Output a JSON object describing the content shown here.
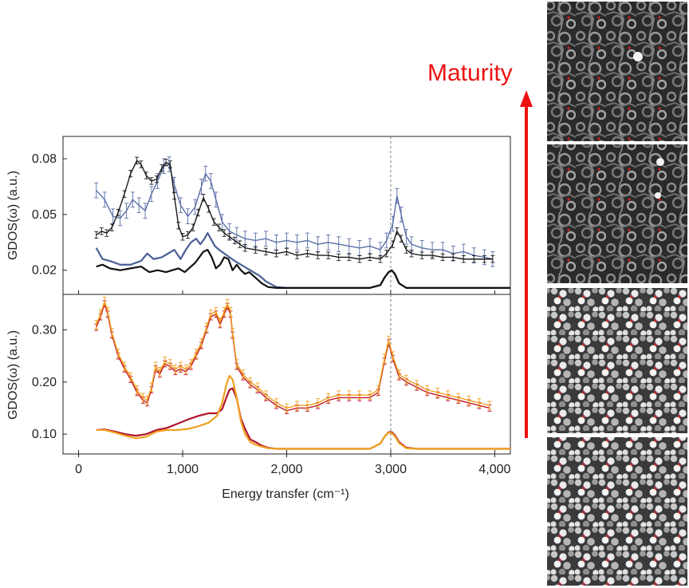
{
  "figure": {
    "maturity_label": "Maturity",
    "arrow_color": "#ee1111",
    "thumbnail_caption_icons": [
      "kerogen-structure-most-mature",
      "kerogen-structure-mature",
      "kerogen-structure-less-mature",
      "kerogen-structure-least-mature"
    ]
  },
  "chart_data": [
    {
      "type": "line",
      "title": "",
      "xlabel": "Energy transfer (cm⁻¹)",
      "ylabel": "GDOS(ω) (a.u.)",
      "xlim": [
        -150,
        4150
      ],
      "ylim": [
        0.007,
        0.092
      ],
      "x_ticks": [
        0,
        1000,
        2000,
        3000,
        4000
      ],
      "x_tick_labels": [
        "0",
        "1,000",
        "2,000",
        "3,000",
        "4,000"
      ],
      "y_ticks": [
        0.02,
        0.05,
        0.08
      ],
      "y_tick_labels": [
        "0.02",
        "0.05",
        "0.08"
      ],
      "reference_line_x": 3000,
      "grid": false,
      "legend": "none",
      "series": [
        {
          "kind": "experiment-with-errorbars",
          "color": "#5a6fa8",
          "error": 0.004,
          "x": [
            170,
            250,
            330,
            400,
            460,
            520,
            580,
            640,
            700,
            760,
            820,
            870,
            920,
            980,
            1050,
            1120,
            1180,
            1220,
            1270,
            1320,
            1380,
            1450,
            1520,
            1600,
            1700,
            1800,
            1900,
            2000,
            2100,
            2200,
            2300,
            2400,
            2500,
            2600,
            2700,
            2800,
            2900,
            2960,
            3020,
            3060,
            3100,
            3150,
            3200,
            3300,
            3400,
            3500,
            3600,
            3700,
            3800,
            3900,
            3980
          ],
          "y": [
            0.063,
            0.058,
            0.049,
            0.048,
            0.052,
            0.058,
            0.055,
            0.052,
            0.061,
            0.068,
            0.076,
            0.077,
            0.066,
            0.055,
            0.049,
            0.054,
            0.065,
            0.072,
            0.068,
            0.058,
            0.046,
            0.041,
            0.039,
            0.037,
            0.036,
            0.037,
            0.035,
            0.036,
            0.035,
            0.036,
            0.034,
            0.035,
            0.034,
            0.033,
            0.032,
            0.033,
            0.031,
            0.036,
            0.045,
            0.06,
            0.05,
            0.038,
            0.034,
            0.032,
            0.031,
            0.031,
            0.029,
            0.03,
            0.028,
            0.027,
            0.026
          ]
        },
        {
          "kind": "experiment-with-errorbars",
          "color": "#1a1a1a",
          "error": 0.0018,
          "x": [
            170,
            220,
            270,
            320,
            380,
            440,
            500,
            560,
            600,
            650,
            700,
            750,
            800,
            840,
            880,
            920,
            960,
            1000,
            1050,
            1100,
            1150,
            1200,
            1250,
            1300,
            1350,
            1400,
            1450,
            1500,
            1550,
            1600,
            1700,
            1800,
            1900,
            2000,
            2100,
            2200,
            2300,
            2400,
            2500,
            2600,
            2700,
            2800,
            2900,
            2960,
            3020,
            3060,
            3100,
            3150,
            3200,
            3300,
            3400,
            3500,
            3600,
            3700,
            3800,
            3900,
            3980
          ],
          "y": [
            0.039,
            0.041,
            0.04,
            0.043,
            0.051,
            0.061,
            0.072,
            0.079,
            0.077,
            0.071,
            0.068,
            0.069,
            0.075,
            0.078,
            0.077,
            0.06,
            0.044,
            0.038,
            0.039,
            0.043,
            0.051,
            0.059,
            0.053,
            0.046,
            0.043,
            0.04,
            0.038,
            0.036,
            0.034,
            0.032,
            0.031,
            0.03,
            0.029,
            0.03,
            0.028,
            0.029,
            0.028,
            0.028,
            0.027,
            0.027,
            0.026,
            0.027,
            0.026,
            0.029,
            0.034,
            0.041,
            0.037,
            0.031,
            0.029,
            0.028,
            0.028,
            0.027,
            0.027,
            0.026,
            0.026,
            0.026,
            0.026
          ]
        },
        {
          "kind": "simulation",
          "color": "#4a5e96",
          "x": [
            170,
            230,
            300,
            400,
            500,
            600,
            660,
            720,
            800,
            860,
            920,
            980,
            1030,
            1080,
            1130,
            1170,
            1210,
            1240,
            1280,
            1310,
            1350,
            1400,
            1450,
            1500,
            1560,
            1620,
            1680,
            1740,
            1800,
            1900,
            2000,
            2200,
            2400,
            2600,
            2800,
            2900,
            2940,
            2980,
            3010,
            3040,
            3080,
            3150,
            3250,
            3400,
            3600,
            3800,
            4000,
            4150
          ],
          "y": [
            0.032,
            0.026,
            0.025,
            0.023,
            0.023,
            0.025,
            0.029,
            0.026,
            0.027,
            0.029,
            0.031,
            0.026,
            0.031,
            0.035,
            0.037,
            0.034,
            0.037,
            0.04,
            0.036,
            0.033,
            0.031,
            0.029,
            0.027,
            0.025,
            0.023,
            0.021,
            0.019,
            0.017,
            0.014,
            0.011,
            0.0105,
            0.0105,
            0.0105,
            0.0105,
            0.0105,
            0.012,
            0.016,
            0.019,
            0.02,
            0.018,
            0.013,
            0.0105,
            0.0105,
            0.0105,
            0.0105,
            0.0105,
            0.0105,
            0.0105
          ]
        },
        {
          "kind": "simulation",
          "color": "#111111",
          "x": [
            170,
            230,
            300,
            400,
            500,
            600,
            680,
            760,
            840,
            900,
            960,
            1020,
            1080,
            1120,
            1160,
            1200,
            1240,
            1280,
            1320,
            1360,
            1400,
            1440,
            1480,
            1520,
            1560,
            1600,
            1640,
            1700,
            1760,
            1820,
            1900,
            2000,
            2200,
            2400,
            2600,
            2800,
            2900,
            2940,
            2980,
            3010,
            3040,
            3080,
            3150,
            3250,
            3400,
            3600,
            3800,
            4000,
            4150
          ],
          "y": [
            0.022,
            0.023,
            0.021,
            0.02,
            0.021,
            0.022,
            0.019,
            0.02,
            0.019,
            0.02,
            0.021,
            0.019,
            0.022,
            0.024,
            0.027,
            0.03,
            0.031,
            0.027,
            0.021,
            0.023,
            0.027,
            0.026,
            0.02,
            0.023,
            0.02,
            0.018,
            0.019,
            0.016,
            0.013,
            0.011,
            0.0105,
            0.0105,
            0.0105,
            0.0105,
            0.0105,
            0.0105,
            0.012,
            0.016,
            0.019,
            0.02,
            0.018,
            0.013,
            0.0105,
            0.0105,
            0.0105,
            0.0105,
            0.0105,
            0.0105,
            0.0105
          ]
        }
      ]
    },
    {
      "type": "line",
      "title": "",
      "xlabel": "Energy transfer (cm⁻¹)",
      "ylabel": "GDOS(ω) (a.u.)",
      "xlim": [
        -150,
        4150
      ],
      "ylim": [
        0.062,
        0.368
      ],
      "x_ticks": [
        0,
        1000,
        2000,
        3000,
        4000
      ],
      "x_tick_labels": [
        "0",
        "1,000",
        "2,000",
        "3,000",
        "4,000"
      ],
      "y_ticks": [
        0.1,
        0.2,
        0.3
      ],
      "y_tick_labels": [
        "0.10",
        "0.20",
        "0.30"
      ],
      "reference_line_x": 3000,
      "grid": false,
      "legend": "none",
      "series": [
        {
          "kind": "experiment-with-errorbars",
          "color": "#c0182a",
          "error": 0.006,
          "x": [
            170,
            210,
            250,
            280,
            320,
            380,
            440,
            500,
            560,
            620,
            660,
            700,
            740,
            780,
            830,
            880,
            930,
            980,
            1030,
            1080,
            1130,
            1180,
            1230,
            1270,
            1320,
            1360,
            1400,
            1430,
            1460,
            1480,
            1520,
            1580,
            1650,
            1720,
            1800,
            1900,
            2000,
            2100,
            2200,
            2300,
            2400,
            2500,
            2600,
            2700,
            2800,
            2880,
            2940,
            2980,
            3020,
            3080,
            3150,
            3250,
            3350,
            3450,
            3550,
            3650,
            3750,
            3850,
            3950
          ],
          "y": [
            0.305,
            0.325,
            0.35,
            0.33,
            0.29,
            0.25,
            0.225,
            0.205,
            0.18,
            0.165,
            0.16,
            0.185,
            0.225,
            0.215,
            0.235,
            0.23,
            0.22,
            0.225,
            0.22,
            0.23,
            0.25,
            0.27,
            0.3,
            0.325,
            0.33,
            0.31,
            0.33,
            0.345,
            0.33,
            0.29,
            0.23,
            0.21,
            0.195,
            0.185,
            0.17,
            0.155,
            0.145,
            0.15,
            0.15,
            0.155,
            0.165,
            0.17,
            0.17,
            0.17,
            0.17,
            0.18,
            0.24,
            0.275,
            0.245,
            0.21,
            0.2,
            0.19,
            0.18,
            0.175,
            0.17,
            0.165,
            0.16,
            0.155,
            0.15
          ]
        },
        {
          "kind": "experiment-with-errorbars",
          "color": "#f0a020",
          "error": 0.008,
          "x": [
            170,
            210,
            250,
            280,
            320,
            380,
            440,
            500,
            560,
            620,
            660,
            700,
            740,
            780,
            830,
            880,
            930,
            980,
            1030,
            1080,
            1130,
            1180,
            1230,
            1270,
            1320,
            1360,
            1400,
            1430,
            1460,
            1480,
            1520,
            1580,
            1650,
            1720,
            1800,
            1900,
            2000,
            2100,
            2200,
            2300,
            2400,
            2500,
            2600,
            2700,
            2800,
            2880,
            2940,
            2980,
            3020,
            3080,
            3150,
            3250,
            3350,
            3450,
            3550,
            3650,
            3750,
            3850,
            3950
          ],
          "y": [
            0.31,
            0.33,
            0.355,
            0.335,
            0.295,
            0.255,
            0.23,
            0.21,
            0.185,
            0.17,
            0.165,
            0.19,
            0.23,
            0.22,
            0.24,
            0.235,
            0.225,
            0.23,
            0.225,
            0.235,
            0.255,
            0.275,
            0.305,
            0.33,
            0.335,
            0.315,
            0.335,
            0.35,
            0.335,
            0.295,
            0.235,
            0.215,
            0.2,
            0.19,
            0.175,
            0.16,
            0.15,
            0.155,
            0.155,
            0.16,
            0.17,
            0.175,
            0.175,
            0.175,
            0.175,
            0.185,
            0.245,
            0.28,
            0.25,
            0.215,
            0.205,
            0.195,
            0.185,
            0.18,
            0.175,
            0.17,
            0.165,
            0.16,
            0.155
          ]
        },
        {
          "kind": "simulation",
          "color": "#b0142a",
          "x": [
            170,
            250,
            350,
            450,
            550,
            650,
            750,
            850,
            950,
            1050,
            1150,
            1250,
            1330,
            1380,
            1420,
            1450,
            1480,
            1520,
            1560,
            1600,
            1650,
            1700,
            1760,
            1820,
            1900,
            2000,
            2200,
            2400,
            2600,
            2800,
            2900,
            2940,
            2980,
            3010,
            3040,
            3080,
            3150,
            3250,
            3400,
            3600,
            3800,
            4000,
            4150
          ],
          "y": [
            0.108,
            0.109,
            0.105,
            0.1,
            0.097,
            0.1,
            0.108,
            0.112,
            0.12,
            0.128,
            0.135,
            0.14,
            0.14,
            0.148,
            0.17,
            0.185,
            0.188,
            0.168,
            0.13,
            0.11,
            0.09,
            0.085,
            0.078,
            0.074,
            0.072,
            0.072,
            0.072,
            0.072,
            0.072,
            0.072,
            0.082,
            0.095,
            0.104,
            0.104,
            0.098,
            0.085,
            0.074,
            0.072,
            0.072,
            0.072,
            0.072,
            0.072,
            0.072
          ]
        },
        {
          "kind": "simulation",
          "color": "#f0a020",
          "x": [
            170,
            250,
            350,
            450,
            550,
            650,
            750,
            850,
            950,
            1050,
            1150,
            1250,
            1330,
            1380,
            1420,
            1450,
            1480,
            1520,
            1560,
            1600,
            1650,
            1700,
            1760,
            1820,
            1900,
            2000,
            2200,
            2400,
            2600,
            2800,
            2900,
            2940,
            2980,
            3010,
            3040,
            3080,
            3150,
            3250,
            3400,
            3600,
            3800,
            4000,
            4150
          ],
          "y": [
            0.108,
            0.108,
            0.103,
            0.097,
            0.092,
            0.095,
            0.105,
            0.108,
            0.108,
            0.11,
            0.115,
            0.122,
            0.135,
            0.16,
            0.195,
            0.212,
            0.205,
            0.17,
            0.125,
            0.1,
            0.085,
            0.08,
            0.076,
            0.073,
            0.072,
            0.072,
            0.072,
            0.072,
            0.072,
            0.072,
            0.082,
            0.095,
            0.103,
            0.102,
            0.096,
            0.083,
            0.073,
            0.072,
            0.072,
            0.072,
            0.072,
            0.072,
            0.072
          ]
        }
      ]
    }
  ]
}
